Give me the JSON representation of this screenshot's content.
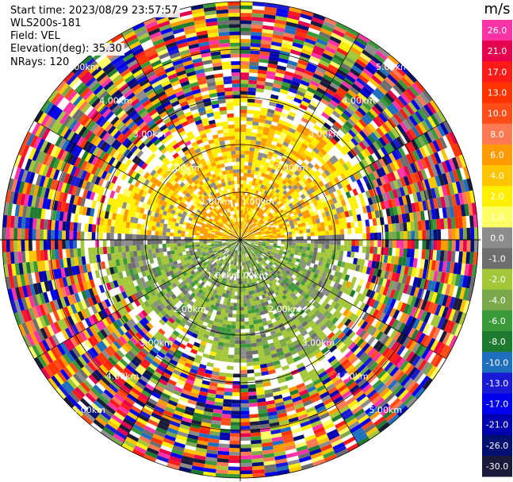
{
  "header": {
    "start_time": "Start time: 2023/08/29 23:57:57",
    "instrument": "WLS200s-181",
    "field": "Field: VEL",
    "elevation": "Elevation(deg): 35.30",
    "nrays": "NRays: 120"
  },
  "chart_data": {
    "type": "polar-ppi",
    "field": "VEL",
    "units": "m/s",
    "range_rings_km": [
      "1.00km",
      "2.00km",
      "3.00km",
      "4.00km",
      "5.00km"
    ],
    "colorbar": {
      "unit": "m/s",
      "levels": [
        {
          "label": "26.0",
          "color": "#ff33a6"
        },
        {
          "label": "21.0",
          "color": "#e6004d"
        },
        {
          "label": "17.0",
          "color": "#ff1a1a"
        },
        {
          "label": "13.0",
          "color": "#ff3300"
        },
        {
          "label": "10.0",
          "color": "#ff4d1a"
        },
        {
          "label": "8.0",
          "color": "#ff7a52"
        },
        {
          "label": "6.0",
          "color": "#ff9a00"
        },
        {
          "label": "4.0",
          "color": "#ffc400"
        },
        {
          "label": "2.0",
          "color": "#ffef00"
        },
        {
          "label": "1.0",
          "color": "#ffff66"
        },
        {
          "label": "0.0",
          "color": "#8c8c8c"
        },
        {
          "label": "-1.0",
          "color": "#6e6e6e"
        },
        {
          "label": "-2.0",
          "color": "#a4c73a"
        },
        {
          "label": "-4.0",
          "color": "#7aa84a"
        },
        {
          "label": "-6.0",
          "color": "#3a9a3a"
        },
        {
          "label": "-8.0",
          "color": "#1e7a2e"
        },
        {
          "label": "-10.0",
          "color": "#1f6fbf"
        },
        {
          "label": "-13.0",
          "color": "#1a1ad6"
        },
        {
          "label": "-17.0",
          "color": "#0000ee"
        },
        {
          "label": "-21.0",
          "color": "#0000b0"
        },
        {
          "label": "-26.0",
          "color": "#001070"
        },
        {
          "label": "-30.0",
          "color": "#1a1a3a"
        }
      ]
    }
  }
}
